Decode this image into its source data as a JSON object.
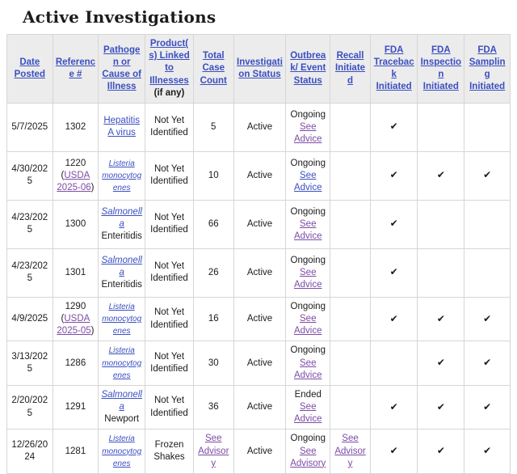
{
  "page": {
    "title": "Active Investigations"
  },
  "colors": {
    "link": "#3b4fc0",
    "visited_link": "#7d4ba5",
    "header_bg": "#ececec",
    "border": "#d6d6d6",
    "text": "#1b1b1b",
    "check": "#1a1a1a"
  },
  "table": {
    "checkmark": "✔",
    "headers": [
      {
        "label": "Date Posted"
      },
      {
        "label": "Reference #"
      },
      {
        "label": "Pathogen or Cause of Illness"
      },
      {
        "label": "Product(s) Linked to Illnesses",
        "note": "(if any)"
      },
      {
        "label": "Total Case Count"
      },
      {
        "label": "Investigation Status"
      },
      {
        "label": "Outbreak/ Event Status"
      },
      {
        "label": "Recall Initiated"
      },
      {
        "label": "FDA Traceback Initiated"
      },
      {
        "label": "FDA Inspection Initiated"
      },
      {
        "label": "FDA Sampling Initiated"
      }
    ],
    "rows": [
      {
        "date": "5/7/2025",
        "ref_pre": "1302",
        "ref_usda_link": null,
        "ref_post": null,
        "pathogen_link": "Hepatitis A virus",
        "pathogen_italic": false,
        "pathogen_small": false,
        "pathogen_rest": null,
        "product": "Not Yet Identified",
        "case_count": "5",
        "case_count_link": null,
        "investigation_status": "Active",
        "outbreak_status": "Ongoing",
        "outbreak_link": "See Advice",
        "outbreak_link_visited": true,
        "recall_link": null,
        "fda_traceback": true,
        "fda_inspection": false,
        "fda_sampling": false
      },
      {
        "date": "4/30/2025",
        "ref_pre": "1220 (",
        "ref_usda_link": "USDA 2025-06",
        "ref_post": ")",
        "pathogen_link": "Listeria monocytogenes",
        "pathogen_italic": true,
        "pathogen_small": true,
        "pathogen_rest": null,
        "product": "Not Yet Identified",
        "case_count": "10",
        "case_count_link": null,
        "investigation_status": "Active",
        "outbreak_status": "Ongoing",
        "outbreak_link": "See Advice",
        "outbreak_link_visited": false,
        "recall_link": null,
        "fda_traceback": true,
        "fda_inspection": true,
        "fda_sampling": true
      },
      {
        "date": "4/23/2025",
        "ref_pre": "1300",
        "ref_usda_link": null,
        "ref_post": null,
        "pathogen_link": "Salmonella",
        "pathogen_italic": true,
        "pathogen_small": false,
        "pathogen_rest": "Enteritidis",
        "product": "Not Yet Identified",
        "case_count": "66",
        "case_count_link": null,
        "investigation_status": "Active",
        "outbreak_status": "Ongoing",
        "outbreak_link": "See Advice",
        "outbreak_link_visited": true,
        "recall_link": null,
        "fda_traceback": true,
        "fda_inspection": false,
        "fda_sampling": false
      },
      {
        "date": "4/23/2025",
        "ref_pre": "1301",
        "ref_usda_link": null,
        "ref_post": null,
        "pathogen_link": "Salmonella",
        "pathogen_italic": true,
        "pathogen_small": false,
        "pathogen_rest": "Enteritidis",
        "product": "Not Yet Identified",
        "case_count": "26",
        "case_count_link": null,
        "investigation_status": "Active",
        "outbreak_status": "Ongoing",
        "outbreak_link": "See Advice",
        "outbreak_link_visited": true,
        "recall_link": null,
        "fda_traceback": true,
        "fda_inspection": false,
        "fda_sampling": false
      },
      {
        "date": "4/9/2025",
        "ref_pre": "1290 (",
        "ref_usda_link": "USDA 2025-05",
        "ref_post": ")",
        "pathogen_link": "Listeria monocytogenes",
        "pathogen_italic": true,
        "pathogen_small": true,
        "pathogen_rest": null,
        "product": "Not Yet Identified",
        "case_count": "16",
        "case_count_link": null,
        "investigation_status": "Active",
        "outbreak_status": "Ongoing",
        "outbreak_link": "See Advice",
        "outbreak_link_visited": true,
        "recall_link": null,
        "fda_traceback": true,
        "fda_inspection": true,
        "fda_sampling": true
      },
      {
        "date": "3/13/2025",
        "ref_pre": "1286",
        "ref_usda_link": null,
        "ref_post": null,
        "pathogen_link": "Listeria monocytogenes",
        "pathogen_italic": true,
        "pathogen_small": true,
        "pathogen_rest": null,
        "product": "Not Yet Identified",
        "case_count": "30",
        "case_count_link": null,
        "investigation_status": "Active",
        "outbreak_status": "Ongoing",
        "outbreak_link": "See Advice",
        "outbreak_link_visited": true,
        "recall_link": null,
        "fda_traceback": false,
        "fda_inspection": true,
        "fda_sampling": true
      },
      {
        "date": "2/20/2025",
        "ref_pre": "1291",
        "ref_usda_link": null,
        "ref_post": null,
        "pathogen_link": "Salmonella",
        "pathogen_italic": true,
        "pathogen_small": false,
        "pathogen_rest": "Newport",
        "product": "Not Yet Identified",
        "case_count": "36",
        "case_count_link": null,
        "investigation_status": "Active",
        "outbreak_status": "Ended",
        "outbreak_link": "See Advice",
        "outbreak_link_visited": true,
        "recall_link": null,
        "fda_traceback": true,
        "fda_inspection": true,
        "fda_sampling": true
      },
      {
        "date": "12/26/2024",
        "ref_pre": "1281",
        "ref_usda_link": null,
        "ref_post": null,
        "pathogen_link": "Listeria monocytogenes",
        "pathogen_italic": true,
        "pathogen_small": true,
        "pathogen_rest": null,
        "product": "Frozen Shakes",
        "case_count": null,
        "case_count_link": "See Advisory",
        "investigation_status": "Active",
        "outbreak_status": "Ongoing",
        "outbreak_link": "See Advisory",
        "outbreak_link_visited": true,
        "recall_link": "See Advisory",
        "fda_traceback": true,
        "fda_inspection": true,
        "fda_sampling": true
      }
    ]
  }
}
